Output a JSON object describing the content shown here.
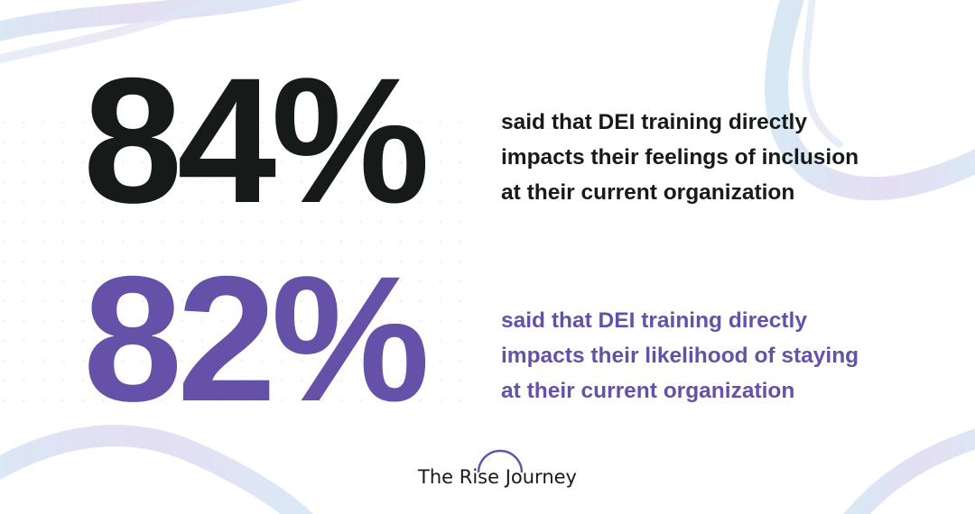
{
  "stats": [
    {
      "value": "84%",
      "lines": [
        "said that DEI training directly",
        "impacts their feelings of inclusion",
        "at their current organization"
      ]
    },
    {
      "value": "82%",
      "lines": [
        "said that DEI training directly",
        "impacts their likelihood of staying",
        "at their current organization"
      ]
    }
  ],
  "logo": "The Rise Journey"
}
